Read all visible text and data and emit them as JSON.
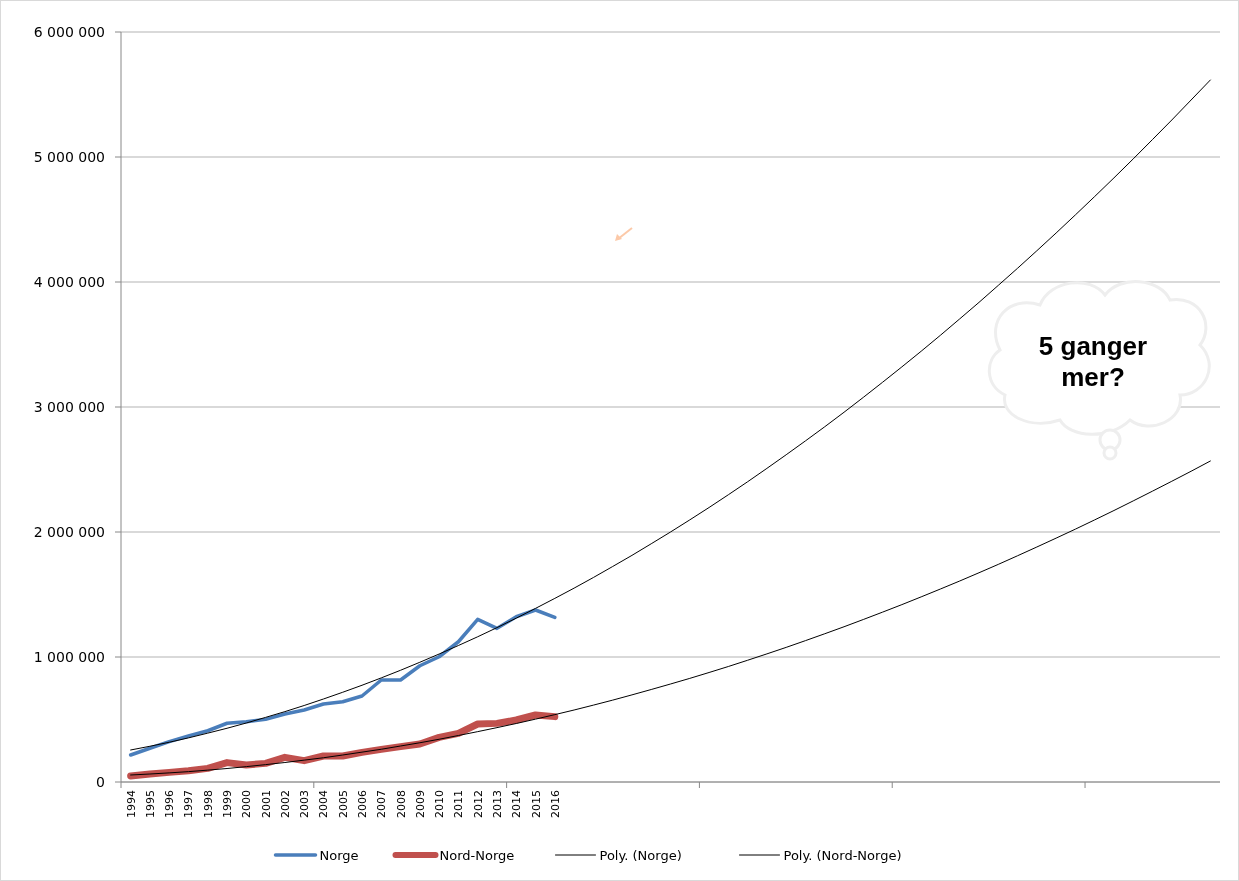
{
  "chart_data": {
    "type": "line",
    "categories": [
      "1994",
      "1995",
      "1996",
      "1997",
      "1998",
      "1999",
      "2000",
      "2001",
      "2002",
      "2003",
      "2004",
      "2005",
      "2006",
      "2007",
      "2008",
      "2009",
      "2010",
      "2011",
      "2012",
      "2013",
      "2014",
      "2015",
      "2016",
      null,
      null,
      null,
      null,
      null,
      null,
      null,
      null,
      null,
      null,
      null,
      null,
      null,
      null,
      null,
      null,
      null,
      null,
      null,
      null,
      null,
      null,
      null,
      null,
      null,
      null,
      null,
      null,
      null,
      null,
      null,
      null,
      null,
      null
    ],
    "series": [
      {
        "name": "Norge",
        "color": "#4a7ebb",
        "values": [
          216000,
          270000,
          323000,
          368000,
          410000,
          470000,
          482000,
          501000,
          544000,
          576000,
          624000,
          642000,
          688000,
          816000,
          816000,
          930000,
          1002000,
          1122000,
          1301000,
          1229000,
          1322000,
          1376000,
          1317000,
          null,
          null,
          null,
          null,
          null,
          null,
          null,
          null,
          null,
          null,
          null,
          null,
          null,
          null,
          null,
          null,
          null,
          null,
          null,
          null,
          null,
          null,
          null,
          null,
          null,
          null,
          null,
          null,
          null,
          null,
          null,
          null,
          null,
          null
        ]
      },
      {
        "name": "Nord-Norge",
        "color": "#c0504d",
        "values": [
          48000,
          64000,
          77000,
          90000,
          109000,
          155000,
          136000,
          149000,
          197000,
          171000,
          208000,
          208000,
          237000,
          261000,
          283000,
          304000,
          357000,
          389000,
          464000,
          469000,
          496000,
          536000,
          523000,
          null,
          null,
          null,
          null,
          null,
          null,
          null,
          null,
          null,
          null,
          null,
          null,
          null,
          null,
          null,
          null,
          null,
          null,
          null,
          null,
          null,
          null,
          null,
          null,
          null,
          null,
          null,
          null,
          null,
          null,
          null,
          null,
          null,
          null
        ]
      },
      {
        "name": "Poly. (Norge)",
        "color": "#000000",
        "values": [
          256000,
          286000,
          318000,
          353000,
          391000,
          430000,
          472000,
          517000,
          563000,
          612000,
          664000,
          718000,
          774000,
          833000,
          894000,
          958000,
          1024000,
          1092000,
          1162000,
          1235000,
          1311000,
          1389000,
          1469000,
          1551000,
          1636000,
          1724000,
          1813000,
          1906000,
          2000000,
          2097000,
          2196000,
          2298000,
          2402000,
          2509000,
          2618000,
          2729000,
          2842000,
          2958000,
          3077000,
          3198000,
          3321000,
          3446000,
          3574000,
          3705000,
          3837000,
          3973000,
          4110000,
          4250000,
          4392000,
          4537000,
          4684000,
          4833000,
          4985000,
          5140000,
          5296000,
          5456000,
          5616000
        ]
      },
      {
        "name": "Poly. (Nord-Norge)",
        "color": "#000000",
        "values": [
          56000,
          64000,
          73000,
          83000,
          95000,
          108000,
          123000,
          139000,
          156000,
          175000,
          194000,
          216000,
          239000,
          262000,
          288000,
          314000,
          342000,
          372000,
          403000,
          435000,
          468000,
          503000,
          539000,
          576000,
          615000,
          655000,
          697000,
          740000,
          784000,
          829000,
          876000,
          924000,
          974000,
          1025000,
          1077000,
          1131000,
          1186000,
          1242000,
          1300000,
          1359000,
          1419000,
          1481000,
          1544000,
          1608000,
          1674000,
          1741000,
          1810000,
          1880000,
          1951000,
          2023000,
          2097000,
          2172000,
          2249000,
          2327000,
          2406000,
          2486000,
          2568000
        ]
      }
    ],
    "ylim": [
      0,
      6000000
    ],
    "yticks": [
      0,
      {
        "value": 1000000,
        "label": "1 000 000"
      },
      {
        "value": 2000000,
        "label": "2 000 000"
      },
      {
        "value": 3000000,
        "label": "3 000 000"
      },
      {
        "value": 4000000,
        "label": "4 000 000"
      },
      {
        "value": 5000000,
        "label": "5 000 000"
      },
      {
        "value": 6000000,
        "label": "6 000 000"
      }
    ],
    "grid": "y",
    "legend": "bottom",
    "annotations": [
      "5 ganger mer?"
    ]
  }
}
